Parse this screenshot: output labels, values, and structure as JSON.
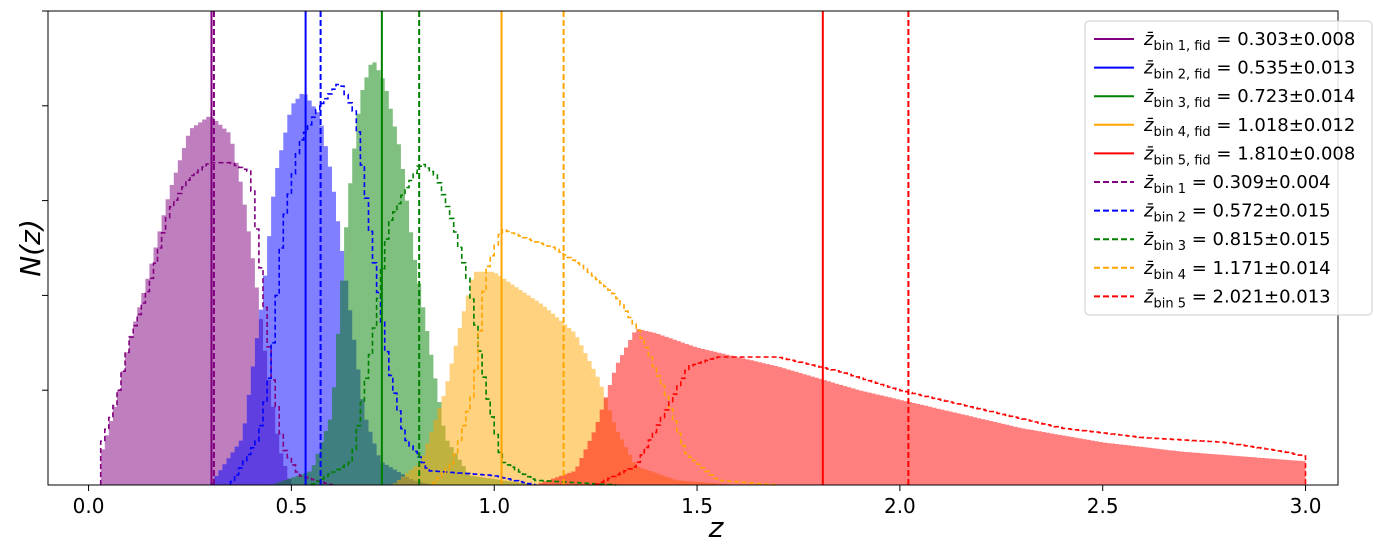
{
  "chart_data": {
    "type": "histogram",
    "xlabel": "z",
    "ylabel": "N(z)",
    "xlim": [
      -0.1,
      3.08
    ],
    "ylim": [
      0,
      1.0
    ],
    "x_ticks": [
      0.0,
      0.5,
      1.0,
      1.5,
      2.0,
      2.5,
      3.0
    ],
    "x_tick_labels": [
      "0.0",
      "0.5",
      "1.0",
      "1.5",
      "2.0",
      "2.5",
      "3.0"
    ],
    "y_ticks": [
      0.2,
      0.4,
      0.6,
      0.8,
      1.0
    ],
    "y_tick_labels_shown": false,
    "legend_position": "upper-right",
    "bins": [
      {
        "id": 1,
        "color": "#800080",
        "fid_mean": 0.303,
        "fid_err": 0.008,
        "mean": 0.309,
        "err": 0.004,
        "fid_label": "= 0.303±0.008",
        "label": "= 0.309±0.004",
        "fid_sub": "bin 1, fid",
        "sub": "bin 1"
      },
      {
        "id": 2,
        "color": "#0000ff",
        "fid_mean": 0.535,
        "fid_err": 0.013,
        "mean": 0.572,
        "err": 0.015,
        "fid_label": "= 0.535±0.013",
        "label": "= 0.572±0.015",
        "fid_sub": "bin 2, fid",
        "sub": "bin 2"
      },
      {
        "id": 3,
        "color": "#008000",
        "fid_mean": 0.723,
        "fid_err": 0.014,
        "mean": 0.815,
        "err": 0.015,
        "fid_label": "= 0.723±0.014",
        "label": "= 0.815±0.015",
        "fid_sub": "bin 3, fid",
        "sub": "bin 3"
      },
      {
        "id": 4,
        "color": "#ffa500",
        "fid_mean": 1.018,
        "fid_err": 0.012,
        "mean": 1.171,
        "err": 0.014,
        "fid_label": "= 1.018±0.012",
        "label": "= 1.171±0.014",
        "fid_sub": "bin 4, fid",
        "sub": "bin 4"
      },
      {
        "id": 5,
        "color": "#ff0000",
        "fid_mean": 1.81,
        "fid_err": 0.008,
        "mean": 2.021,
        "err": 0.013,
        "fid_label": "= 1.810±0.008",
        "label": "= 2.021±0.013",
        "fid_sub": "bin 5, fid",
        "sub": "bin 5"
      }
    ],
    "fid_distributions": [
      {
        "bin": 1,
        "range": [
          0.03,
          0.5
        ],
        "shape": [
          [
            0.03,
            0.06
          ],
          [
            0.07,
            0.18
          ],
          [
            0.1,
            0.3
          ],
          [
            0.15,
            0.45
          ],
          [
            0.2,
            0.62
          ],
          [
            0.25,
            0.75
          ],
          [
            0.3,
            0.78
          ],
          [
            0.35,
            0.74
          ],
          [
            0.38,
            0.62
          ],
          [
            0.41,
            0.45
          ],
          [
            0.44,
            0.25
          ],
          [
            0.47,
            0.08
          ],
          [
            0.5,
            0.0
          ]
        ]
      },
      {
        "bin": 2,
        "range": [
          0.3,
          0.85
        ],
        "shape": [
          [
            0.3,
            0.0
          ],
          [
            0.38,
            0.1
          ],
          [
            0.43,
            0.4
          ],
          [
            0.46,
            0.65
          ],
          [
            0.5,
            0.8
          ],
          [
            0.53,
            0.83
          ],
          [
            0.57,
            0.78
          ],
          [
            0.6,
            0.65
          ],
          [
            0.64,
            0.4
          ],
          [
            0.68,
            0.15
          ],
          [
            0.72,
            0.05
          ],
          [
            0.8,
            0.01
          ],
          [
            0.85,
            0.0
          ]
        ]
      },
      {
        "bin": 3,
        "range": [
          0.45,
          1.1
        ],
        "shape": [
          [
            0.45,
            0.0
          ],
          [
            0.55,
            0.03
          ],
          [
            0.6,
            0.15
          ],
          [
            0.64,
            0.6
          ],
          [
            0.67,
            0.82
          ],
          [
            0.7,
            0.9
          ],
          [
            0.73,
            0.85
          ],
          [
            0.77,
            0.7
          ],
          [
            0.8,
            0.5
          ],
          [
            0.84,
            0.3
          ],
          [
            0.88,
            0.1
          ],
          [
            0.94,
            0.02
          ],
          [
            1.1,
            0.0
          ]
        ]
      },
      {
        "bin": 4,
        "range": [
          0.75,
          1.6
        ],
        "shape": [
          [
            0.75,
            0.0
          ],
          [
            0.82,
            0.05
          ],
          [
            0.88,
            0.2
          ],
          [
            0.92,
            0.35
          ],
          [
            0.95,
            0.45
          ],
          [
            1.0,
            0.45
          ],
          [
            1.05,
            0.42
          ],
          [
            1.12,
            0.38
          ],
          [
            1.2,
            0.32
          ],
          [
            1.26,
            0.22
          ],
          [
            1.3,
            0.12
          ],
          [
            1.35,
            0.04
          ],
          [
            1.45,
            0.01
          ],
          [
            1.6,
            0.0
          ]
        ]
      },
      {
        "bin": 5,
        "range": [
          1.1,
          3.0
        ],
        "shape": [
          [
            1.1,
            0.0
          ],
          [
            1.2,
            0.03
          ],
          [
            1.25,
            0.12
          ],
          [
            1.3,
            0.25
          ],
          [
            1.35,
            0.33
          ],
          [
            1.4,
            0.32
          ],
          [
            1.5,
            0.29
          ],
          [
            1.7,
            0.25
          ],
          [
            1.9,
            0.2
          ],
          [
            2.1,
            0.16
          ],
          [
            2.3,
            0.12
          ],
          [
            2.5,
            0.09
          ],
          [
            2.7,
            0.07
          ],
          [
            2.85,
            0.06
          ],
          [
            3.0,
            0.05
          ]
        ]
      }
    ],
    "measured_distributions": [
      {
        "bin": 1,
        "shape": [
          [
            0.03,
            0.08
          ],
          [
            0.07,
            0.18
          ],
          [
            0.1,
            0.3
          ],
          [
            0.15,
            0.42
          ],
          [
            0.2,
            0.58
          ],
          [
            0.25,
            0.65
          ],
          [
            0.3,
            0.68
          ],
          [
            0.35,
            0.68
          ],
          [
            0.4,
            0.66
          ],
          [
            0.42,
            0.5
          ],
          [
            0.45,
            0.25
          ],
          [
            0.48,
            0.08
          ],
          [
            0.52,
            0.02
          ],
          [
            0.6,
            0.0
          ]
        ]
      },
      {
        "bin": 2,
        "shape": [
          [
            0.35,
            0.0
          ],
          [
            0.42,
            0.1
          ],
          [
            0.45,
            0.25
          ],
          [
            0.48,
            0.55
          ],
          [
            0.52,
            0.72
          ],
          [
            0.57,
            0.8
          ],
          [
            0.62,
            0.85
          ],
          [
            0.66,
            0.78
          ],
          [
            0.7,
            0.5
          ],
          [
            0.74,
            0.25
          ],
          [
            0.78,
            0.1
          ],
          [
            0.84,
            0.03
          ],
          [
            1.0,
            0.02
          ],
          [
            1.1,
            0.0
          ]
        ]
      },
      {
        "bin": 3,
        "shape": [
          [
            0.55,
            0.0
          ],
          [
            0.65,
            0.05
          ],
          [
            0.7,
            0.3
          ],
          [
            0.74,
            0.55
          ],
          [
            0.78,
            0.62
          ],
          [
            0.82,
            0.68
          ],
          [
            0.86,
            0.65
          ],
          [
            0.9,
            0.55
          ],
          [
            0.94,
            0.42
          ],
          [
            0.98,
            0.2
          ],
          [
            1.02,
            0.05
          ],
          [
            1.1,
            0.01
          ],
          [
            1.3,
            0.0
          ]
        ]
      },
      {
        "bin": 4,
        "shape": [
          [
            0.85,
            0.0
          ],
          [
            0.9,
            0.05
          ],
          [
            0.95,
            0.2
          ],
          [
            0.98,
            0.45
          ],
          [
            1.02,
            0.54
          ],
          [
            1.08,
            0.52
          ],
          [
            1.15,
            0.5
          ],
          [
            1.22,
            0.46
          ],
          [
            1.3,
            0.4
          ],
          [
            1.36,
            0.32
          ],
          [
            1.42,
            0.2
          ],
          [
            1.47,
            0.07
          ],
          [
            1.55,
            0.01
          ],
          [
            1.7,
            0.0
          ]
        ]
      },
      {
        "bin": 5,
        "shape": [
          [
            1.25,
            0.0
          ],
          [
            1.35,
            0.04
          ],
          [
            1.42,
            0.15
          ],
          [
            1.48,
            0.25
          ],
          [
            1.55,
            0.27
          ],
          [
            1.7,
            0.27
          ],
          [
            1.85,
            0.24
          ],
          [
            2.0,
            0.2
          ],
          [
            2.2,
            0.16
          ],
          [
            2.4,
            0.12
          ],
          [
            2.6,
            0.1
          ],
          [
            2.8,
            0.09
          ],
          [
            2.95,
            0.07
          ],
          [
            3.0,
            0.06
          ]
        ]
      }
    ]
  }
}
